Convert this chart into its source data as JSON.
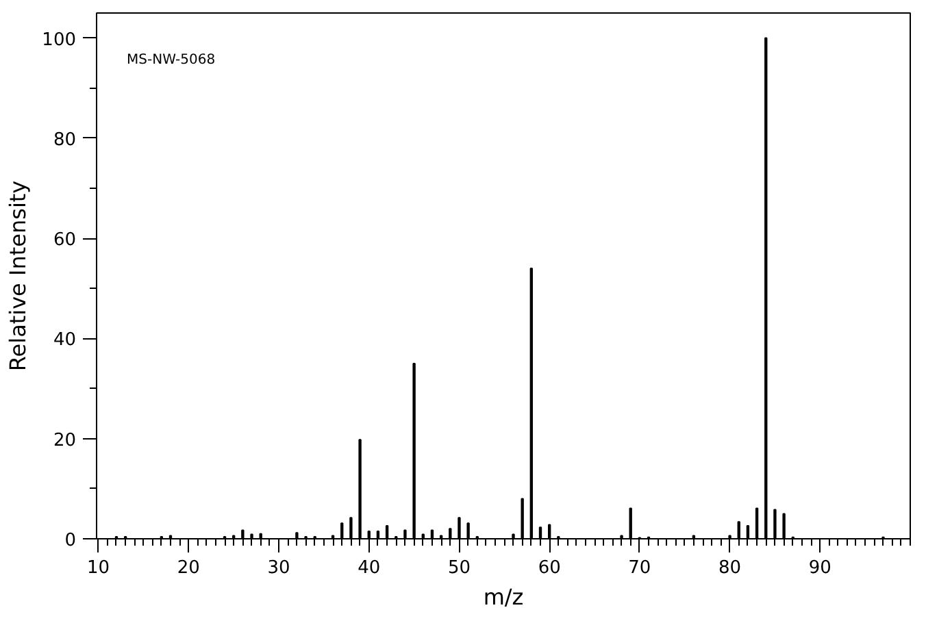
{
  "chart_data": {
    "type": "bar",
    "xlabel": "m/z",
    "ylabel": "Relative Intensity",
    "annotations": [
      "MS-NW-5068"
    ],
    "x": [
      12,
      13,
      17,
      18,
      24,
      25,
      26,
      27,
      28,
      32,
      33,
      34,
      36,
      37,
      38,
      39,
      40,
      41,
      42,
      43,
      44,
      45,
      46,
      47,
      48,
      49,
      50,
      51,
      52,
      56,
      57,
      58,
      59,
      60,
      61,
      68,
      69,
      70,
      71,
      76,
      80,
      81,
      82,
      83,
      84,
      85,
      86,
      87,
      97
    ],
    "series": [
      {
        "color": "#000000",
        "values": [
          0.4,
          0.4,
          0.4,
          0.6,
          0.4,
          0.6,
          1.7,
          0.9,
          1.0,
          1.2,
          0.4,
          0.4,
          0.6,
          3.1,
          4.2,
          19.8,
          1.5,
          1.5,
          2.6,
          0.4,
          1.7,
          35,
          0.9,
          1.7,
          0.6,
          2.0,
          4.2,
          3.1,
          0.4,
          0.9,
          8.0,
          54,
          2.3,
          2.8,
          0.4,
          0.6,
          6.1,
          0.2,
          0.3,
          0.6,
          0.6,
          3.4,
          2.6,
          6.1,
          100,
          5.8,
          5.0,
          0.3,
          0.3
        ]
      }
    ],
    "xlim": [
      9.8,
      100
    ],
    "ylim": [
      0,
      105
    ],
    "xticks": [
      10,
      20,
      30,
      40,
      50,
      60,
      70,
      80,
      90
    ],
    "yticks": [
      0,
      20,
      40,
      60,
      80,
      100
    ],
    "grid": false
  }
}
